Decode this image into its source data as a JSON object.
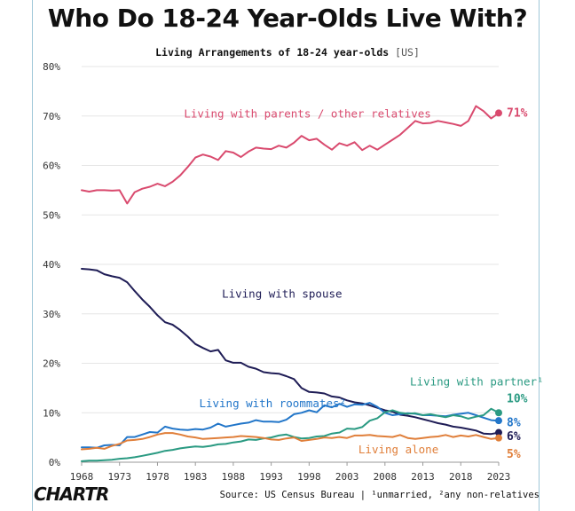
{
  "title": "Who Do 18-24 Year-Olds Live With?",
  "subtitle_main": "Living Arrangements of 18-24 year-olds",
  "subtitle_tag": "[US]",
  "brand": "CHARTR",
  "source": "Source: US Census Bureau | ¹unmarried, ²any non-relatives",
  "chart_data": {
    "type": "line",
    "title": "Living Arrangements of 18-24 year-olds [US]",
    "xlabel": "",
    "ylabel": "",
    "xlim": [
      1968,
      2023
    ],
    "ylim": [
      0,
      80
    ],
    "yticks": [
      0,
      10,
      20,
      30,
      40,
      50,
      60,
      70,
      80
    ],
    "ytick_labels": [
      "0%",
      "10%",
      "20%",
      "30%",
      "40%",
      "50%",
      "60%",
      "70%",
      "80%"
    ],
    "xticks": [
      1968,
      1973,
      1978,
      1983,
      1988,
      1993,
      1998,
      2003,
      2008,
      2013,
      2018,
      2023
    ],
    "grid": "horizontal",
    "x": [
      1968,
      1969,
      1970,
      1971,
      1972,
      1973,
      1974,
      1975,
      1976,
      1977,
      1978,
      1979,
      1980,
      1981,
      1982,
      1983,
      1984,
      1985,
      1986,
      1987,
      1988,
      1989,
      1990,
      1991,
      1992,
      1993,
      1994,
      1995,
      1996,
      1997,
      1998,
      1999,
      2000,
      2001,
      2002,
      2003,
      2004,
      2005,
      2006,
      2007,
      2008,
      2009,
      2010,
      2011,
      2012,
      2013,
      2014,
      2015,
      2016,
      2017,
      2018,
      2019,
      2020,
      2021,
      2022,
      2023
    ],
    "series": [
      {
        "name": "Living with parents / other relatives",
        "color": "#d94a6e",
        "end_label": "71%",
        "values": [
          55,
          54.7,
          55,
          55,
          54.9,
          55,
          52.3,
          54.6,
          55.3,
          55.7,
          56.3,
          55.8,
          56.7,
          58,
          59.7,
          61.6,
          62.2,
          61.8,
          61.1,
          62.9,
          62.6,
          61.7,
          62.8,
          63.6,
          63.4,
          63.3,
          64,
          63.6,
          64.6,
          66,
          65.1,
          65.4,
          64.2,
          63.2,
          64.5,
          64,
          64.7,
          63.1,
          64,
          63.2,
          64.2,
          65.2,
          66.2,
          67.6,
          69,
          68.5,
          68.6,
          69,
          68.7,
          68.4,
          68,
          69,
          72,
          71,
          69.5,
          70.6
        ]
      },
      {
        "name": "Living with spouse",
        "color": "#1f1d56",
        "end_label": "6%",
        "values": [
          39.1,
          39,
          38.8,
          38,
          37.6,
          37.3,
          36.4,
          34.6,
          32.9,
          31.4,
          29.7,
          28.3,
          27.8,
          26.7,
          25.4,
          23.9,
          23.1,
          22.4,
          22.7,
          20.6,
          20.1,
          20.1,
          19.3,
          18.9,
          18.2,
          18,
          17.9,
          17.4,
          16.8,
          15,
          14.2,
          14.1,
          13.9,
          13.3,
          13.1,
          12.5,
          12.1,
          11.9,
          11.5,
          11,
          10.5,
          10.2,
          9.6,
          9.4,
          9.1,
          8.7,
          8.3,
          7.9,
          7.6,
          7.2,
          7,
          6.7,
          6.4,
          5.8,
          5.7,
          6
        ]
      },
      {
        "name": "Living with roommates²",
        "color": "#2276c9",
        "end_label": "8%",
        "values": [
          3,
          3,
          2.9,
          3.4,
          3.5,
          3.4,
          5.1,
          5.1,
          5.6,
          6.1,
          6,
          7.2,
          6.8,
          6.6,
          6.5,
          6.7,
          6.6,
          7,
          7.8,
          7.2,
          7.5,
          7.8,
          8,
          8.5,
          8.2,
          8.2,
          8.1,
          8.6,
          9.7,
          10,
          10.5,
          10.1,
          11.5,
          11.1,
          11.8,
          11.2,
          11.7,
          11.6,
          12,
          11.2,
          10,
          9.5,
          9.7,
          9.9,
          9.8,
          9.5,
          9.5,
          9.4,
          9.3,
          9.6,
          9.8,
          10,
          9.5,
          9,
          8.5,
          8.4
        ]
      },
      {
        "name": "Living with partner¹",
        "color": "#2a9a82",
        "end_label": "10%",
        "values": [
          0.2,
          0.3,
          0.3,
          0.4,
          0.5,
          0.7,
          0.8,
          1,
          1.3,
          1.6,
          1.9,
          2.3,
          2.5,
          2.8,
          3,
          3.2,
          3.1,
          3.3,
          3.6,
          3.7,
          4,
          4.2,
          4.6,
          4.5,
          4.8,
          5,
          5.4,
          5.6,
          5.1,
          4.8,
          4.9,
          5.2,
          5.3,
          5.8,
          6,
          6.8,
          6.7,
          7.1,
          8.4,
          8.9,
          10.1,
          10.5,
          10,
          9.8,
          9.9,
          9.5,
          9.7,
          9.4,
          9.1,
          9.5,
          9.3,
          8.8,
          9.2,
          9.5,
          10.8,
          10
        ]
      },
      {
        "name": "Living alone",
        "color": "#e07f3a",
        "end_label": "5%",
        "values": [
          2.6,
          2.7,
          2.9,
          2.7,
          3.3,
          3.7,
          4.4,
          4.5,
          4.7,
          5.1,
          5.6,
          5.9,
          5.9,
          5.6,
          5.2,
          5,
          4.7,
          4.8,
          4.9,
          5,
          5.1,
          5.3,
          5.2,
          5.1,
          4.9,
          4.6,
          4.5,
          4.8,
          5,
          4.3,
          4.5,
          4.7,
          5,
          4.9,
          5.1,
          4.9,
          5.4,
          5.4,
          5.5,
          5.3,
          5.2,
          5.1,
          5.5,
          4.9,
          4.7,
          4.9,
          5.1,
          5.2,
          5.5,
          5.1,
          5.4,
          5.2,
          5.5,
          5.1,
          4.7,
          4.9
        ]
      }
    ],
    "annotations": [
      {
        "text": "Living with parents / other relatives",
        "color": "#d94a6e",
        "x": 1981.5,
        "y": 69.7
      },
      {
        "text": "Living with spouse",
        "color": "#1f1d56",
        "x": 1986.5,
        "y": 33.3
      },
      {
        "text": "Living with roommates²",
        "color": "#2276c9",
        "x": 1983.5,
        "y": 11.1
      },
      {
        "text": "Living with partner¹",
        "color": "#2a9a82",
        "x": 2011.3,
        "y": 15.5
      },
      {
        "text": "Living alone",
        "color": "#e07f3a",
        "x": 2004.5,
        "y": 1.8
      }
    ]
  }
}
